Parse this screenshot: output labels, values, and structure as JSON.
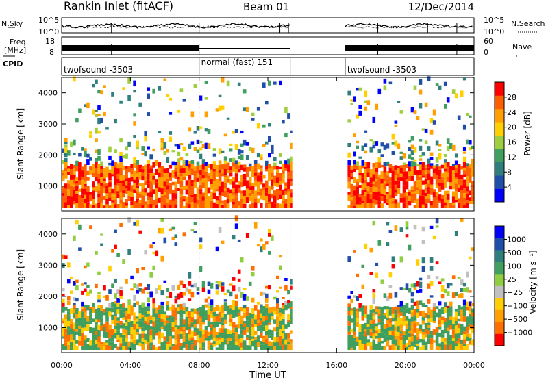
{
  "header": {
    "station": "Rankin Inlet (fitACF)",
    "beam": "Beam 01",
    "date": "12/Dec/2014"
  },
  "strip_labels": {
    "nsky": "N.Sky",
    "freq_line1": "Freq.",
    "freq_line2": "[MHz]",
    "cpid": "CPID",
    "nsearch": "N.Search",
    "nave": "Nave"
  },
  "noise_axis": {
    "top": "10^5",
    "bottom": "10^0"
  },
  "freq_axis": {
    "left_ticks": [
      "18",
      "8"
    ],
    "right_ticks": [
      "60",
      "0"
    ]
  },
  "cpid_segments": [
    {
      "label": "twofsound -3503",
      "start_hour": 0.0,
      "end_hour": 8.0
    },
    {
      "label": "normal (fast) 151",
      "start_hour": 8.0,
      "end_hour": 13.3
    },
    {
      "label": "twofsound -3503",
      "start_hour": 16.5,
      "end_hour": 24.0
    }
  ],
  "colors": {
    "power_scale": [
      "#0000ff",
      "#1f4fa8",
      "#2f7f7f",
      "#3f9f5f",
      "#9fcf3f",
      "#ffcf00",
      "#ff9f00",
      "#ff5f00",
      "#ff0000"
    ],
    "velocity_scale": [
      "#ff0000",
      "#ff6f00",
      "#ff9f00",
      "#ffcf00",
      "#c0c0c0",
      "#8fcf3f",
      "#3f9f5f",
      "#2f7f7f",
      "#1f4fa8",
      "#0000ff"
    ]
  },
  "chart_data": [
    {
      "type": "heatmap",
      "name": "power",
      "ylabel": "Slant Range [km]",
      "yticks": [
        1000,
        2000,
        3000,
        4000
      ],
      "ylim": [
        200,
        4500
      ],
      "colorbar_label": "Power [dB]",
      "colorbar_ticks": [
        "28",
        "24",
        "20",
        "16",
        "12",
        "8",
        "4"
      ],
      "colorbar_range": [
        0,
        32
      ],
      "data_gap_hours": [
        13.3,
        16.5
      ]
    },
    {
      "type": "heatmap",
      "name": "velocity",
      "ylabel": "Slant Range [km]",
      "yticks": [
        1000,
        2000,
        3000,
        4000
      ],
      "ylim": [
        200,
        4500
      ],
      "xlabel": "Time UT",
      "xticks": [
        "00:00",
        "04:00",
        "08:00",
        "12:00",
        "16:00",
        "20:00",
        "00:00"
      ],
      "xlim_hours": [
        0,
        24
      ],
      "colorbar_label": "Velocity [m s⁻¹]",
      "colorbar_ticks": [
        "1000",
        "500",
        "100",
        "25",
        "−25",
        "−100",
        "−500",
        "−1000"
      ],
      "data_gap_hours": [
        13.3,
        16.5
      ]
    }
  ]
}
